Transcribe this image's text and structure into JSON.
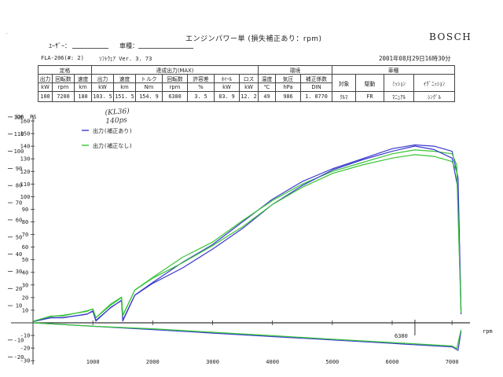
{
  "header": {
    "title": "エンジンパワー単 (損失補正あり：rpm)",
    "brand": "BOSCH",
    "user_label": "ﾕｰｻﾞｰ：",
    "vehicle_label": "車種：",
    "fla": "FLA-206(#: 2)",
    "software": "ｿﾌﾄｳｪｱ Ver. 3. 73",
    "datetime": "2001年08月29日16時30分",
    "corner_mark": "·"
  },
  "table": {
    "groups": [
      "定格",
      "達成出力(MAX)",
      "環境",
      "車種"
    ],
    "columns": [
      {
        "label": "出力",
        "unit": "kW"
      },
      {
        "label": "回転数",
        "unit": "rpm"
      },
      {
        "label": "速度",
        "unit": "km"
      },
      {
        "label": "出力",
        "unit": "kW"
      },
      {
        "label": "速度",
        "unit": "km"
      },
      {
        "label": "トルク",
        "unit": "Nm"
      },
      {
        "label": "回転数",
        "unit": "rpm"
      },
      {
        "label": "許容差",
        "unit": "%"
      },
      {
        "label": "ﾎｲｰﾙ",
        "unit": "kW"
      },
      {
        "label": "ロス",
        "unit": "kW"
      },
      {
        "label": "温度",
        "unit": "℃"
      },
      {
        "label": "気圧",
        "unit": "hPa"
      },
      {
        "label": "補正係数",
        "unit": "DIN"
      },
      {
        "label": "対象",
        "unit": ""
      },
      {
        "label": "駆動",
        "unit": ""
      },
      {
        "label": "ﾐｯｼｮﾝ",
        "unit": ""
      },
      {
        "label": "ｲｸﾞﾆｯｼｮﾝ",
        "unit": ""
      }
    ],
    "values": [
      "100",
      "7200",
      "180",
      "103. 5",
      "151. 5",
      "154. 9",
      "6380",
      "3. 5",
      "83. 9",
      "12. 2",
      "49",
      "986",
      "1. 0770",
      "ｸﾙﾏ",
      "FR",
      "ﾏﾆｭｱﾙ",
      "ｼﾝｸﾞﾙ"
    ]
  },
  "annotation": {
    "line1": "(KL36)",
    "line2": "140ps"
  },
  "chart_data": {
    "type": "line",
    "xlabel": "rpm",
    "ylabel_left": "kW",
    "ylabel_right": "PS",
    "x_ticks": [
      1000,
      2000,
      3000,
      4000,
      5000,
      6000,
      7000
    ],
    "xlim": [
      0,
      7300
    ],
    "kw_ticks": [
      -30,
      -20,
      -10,
      10,
      20,
      30,
      40,
      50,
      60,
      70,
      80,
      90,
      100,
      110,
      120
    ],
    "ps_ticks": [
      -30,
      -20,
      -10,
      10,
      20,
      30,
      40,
      50,
      60,
      70,
      80,
      90,
      100,
      110,
      120,
      130,
      140,
      150,
      160
    ],
    "ylim_ps": [
      -30,
      160
    ],
    "marker_label": "6380",
    "legend": [
      {
        "name": "出力(補正あり)",
        "color": "#3a3acd"
      },
      {
        "name": "出力(補正なし)",
        "color": "#38c438"
      }
    ],
    "series": [
      {
        "name": "出力(補正あり)",
        "role": "power-ps",
        "color": "#3a3acd",
        "x": [
          10,
          300,
          500,
          900,
          1000,
          1050,
          1300,
          1480,
          1500,
          1700,
          2000,
          2500,
          3000,
          3500,
          4000,
          4500,
          5000,
          5500,
          6000,
          6380,
          6700,
          7000,
          7100,
          7150
        ],
        "y": [
          1,
          4,
          4,
          7,
          9,
          2,
          12,
          18,
          2,
          22,
          32,
          48,
          62,
          80,
          98,
          112,
          122,
          130,
          138,
          141,
          140,
          136,
          115,
          10
        ]
      },
      {
        "name": "出力(補正なし)",
        "role": "power-ps",
        "color": "#38c438",
        "x": [
          10,
          300,
          500,
          900,
          1000,
          1050,
          1300,
          1480,
          1500,
          1700,
          2000,
          2500,
          3000,
          3500,
          4000,
          4500,
          5000,
          5500,
          6000,
          6380,
          6700,
          7000,
          7080,
          7150
        ],
        "y": [
          1,
          5,
          6,
          9,
          11,
          4,
          14,
          20,
          6,
          26,
          36,
          52,
          64,
          81,
          97,
          110,
          120,
          127,
          134,
          137,
          136,
          134,
          125,
          10
        ]
      },
      {
        "name": "出力(補正あり)",
        "role": "power-kw",
        "color": "#3a3acd",
        "x": [
          10,
          300,
          500,
          900,
          1000,
          1050,
          1300,
          1480,
          1500,
          1700,
          2000,
          2500,
          3000,
          3500,
          4000,
          4500,
          5000,
          5500,
          6000,
          6380,
          6700,
          7000,
          7100,
          7150
        ],
        "y": [
          1,
          3,
          3,
          5,
          7,
          1,
          9,
          13,
          1,
          16,
          23,
          32,
          43,
          55,
          69,
          80,
          89,
          95,
          100,
          103,
          101,
          96,
          78,
          5
        ]
      },
      {
        "name": "出力(補正なし)",
        "role": "power-kw",
        "color": "#38c438",
        "x": [
          10,
          300,
          500,
          900,
          1000,
          1050,
          1300,
          1480,
          1500,
          1700,
          2000,
          2500,
          3000,
          3500,
          4000,
          4500,
          5000,
          5500,
          6000,
          6380,
          6700,
          7000,
          7080,
          7150
        ],
        "y": [
          1,
          4,
          4,
          7,
          8,
          3,
          11,
          15,
          4,
          19,
          26,
          35,
          45,
          56,
          69,
          79,
          87,
          92,
          96,
          98,
          97,
          94,
          88,
          6
        ]
      },
      {
        "name": "出力(補正あり)",
        "role": "loss",
        "color": "#3a3acd",
        "x": [
          0,
          1000,
          2000,
          3000,
          4000,
          5000,
          6000,
          7000,
          7100,
          7150
        ],
        "y": [
          0,
          -2,
          -4,
          -6,
          -8,
          -10,
          -12,
          -14,
          -16,
          -5
        ]
      },
      {
        "name": "出力(補正なし)",
        "role": "loss",
        "color": "#38c438",
        "x": [
          0,
          1000,
          2000,
          3000,
          4000,
          5000,
          6000,
          7000,
          7080,
          7150
        ],
        "y": [
          0,
          -2,
          -3.5,
          -5.5,
          -7.5,
          -9.5,
          -11.5,
          -13.5,
          -15,
          -4
        ]
      }
    ]
  }
}
